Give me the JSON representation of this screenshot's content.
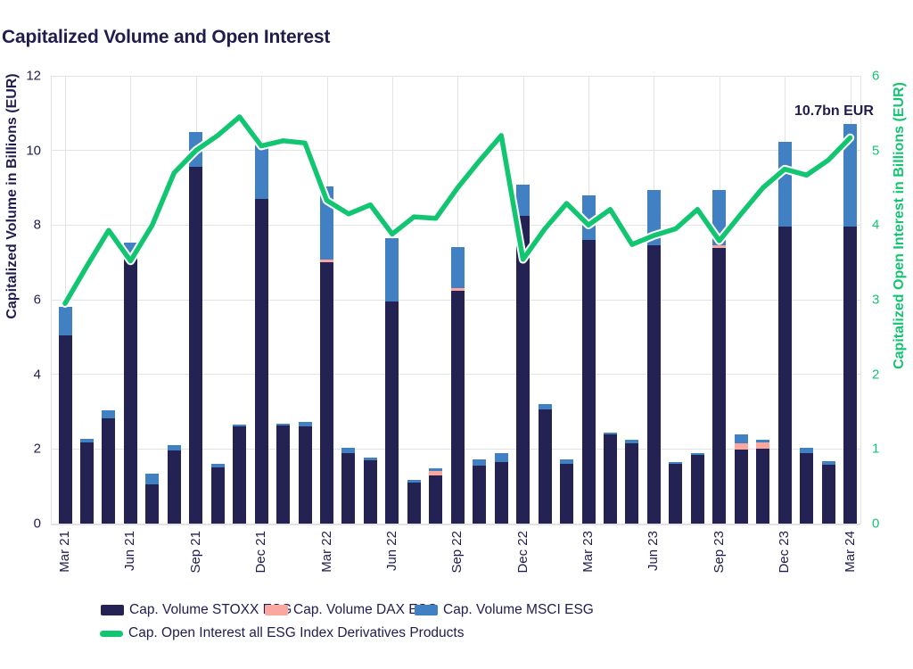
{
  "title": "Capitalized Volume and Open Interest",
  "annotation": {
    "text": "10.7bn EUR"
  },
  "axes": {
    "left": {
      "label": "Capitalized Volume in Billions (EUR)",
      "ticks": [
        0,
        2,
        4,
        6,
        8,
        10,
        12
      ],
      "range": [
        0,
        12
      ]
    },
    "right": {
      "label": "Capitalized Open Interest in Billions (EUR)",
      "ticks": [
        0,
        1,
        2,
        3,
        4,
        5,
        6
      ],
      "range": [
        0,
        6
      ]
    }
  },
  "colors": {
    "stoxx": "#242253",
    "dax": "#f9a79f",
    "msci": "#4181c3",
    "open_interest": "#12c571",
    "grid": "#e3e3e3",
    "text": "#201d4e"
  },
  "legend": {
    "items": [
      {
        "label": "Cap. Volume STOXX ESG",
        "color_key": "stoxx",
        "type": "box"
      },
      {
        "label": "Cap. Volume DAX ESG",
        "color_key": "dax",
        "type": "box"
      },
      {
        "label": "Cap. Volume MSCI ESG",
        "color_key": "msci",
        "type": "box"
      },
      {
        "label": "Cap. Open Interest all ESG Index Derivatives Products",
        "color_key": "open_interest",
        "type": "line"
      }
    ]
  },
  "chart_data": [
    {
      "type": "bar",
      "stacked": true,
      "title": "Capitalized Volume and Open Interest",
      "ylabel": "Capitalized Volume in Billions (EUR)",
      "ylim": [
        0,
        12
      ],
      "grid": true,
      "x_tick_labels_shown": [
        "Mar 21",
        "Jun 21",
        "Sep 21",
        "Dec 21",
        "Mar 22",
        "Jun 22",
        "Sep 22",
        "Dec 22",
        "Mar 23",
        "Jun 23",
        "Sep 23",
        "Dec 23",
        "Mar 24"
      ],
      "categories": [
        "Mar 21",
        "Apr 21",
        "May 21",
        "Jun 21",
        "Jul 21",
        "Aug 21",
        "Sep 21",
        "Oct 21",
        "Nov 21",
        "Dec 21",
        "Jan 22",
        "Feb 22",
        "Mar 22",
        "Apr 22",
        "May 22",
        "Jun 22",
        "Jul 22",
        "Aug 22",
        "Sep 22",
        "Oct 22",
        "Nov 22",
        "Dec 22",
        "Jan 23",
        "Feb 23",
        "Mar 23",
        "Apr 23",
        "May 23",
        "Jun 23",
        "Jul 23",
        "Aug 23",
        "Sep 23",
        "Oct 23",
        "Nov 23",
        "Dec 23",
        "Jan 24",
        "Feb 24",
        "Mar 24"
      ],
      "series": [
        {
          "name": "Cap. Volume STOXX ESG",
          "color_key": "stoxx",
          "values": [
            5.05,
            2.17,
            2.82,
            7.1,
            1.05,
            1.95,
            9.55,
            1.5,
            2.6,
            8.7,
            2.62,
            2.6,
            7.0,
            1.88,
            1.7,
            5.95,
            1.1,
            1.3,
            6.25,
            1.55,
            1.65,
            8.25,
            3.05,
            1.6,
            7.6,
            2.4,
            2.15,
            7.45,
            1.6,
            1.85,
            7.38,
            1.98,
            2.0,
            7.95,
            1.9,
            1.57,
            7.95
          ]
        },
        {
          "name": "Cap. Volume DAX ESG",
          "color_key": "dax",
          "values": [
            0,
            0,
            0,
            0,
            0,
            0,
            0,
            0,
            0,
            0,
            0,
            0,
            0.08,
            0,
            0,
            0,
            0,
            0.11,
            0.07,
            0,
            0,
            0,
            0,
            0,
            0,
            0,
            0,
            0,
            0,
            0,
            0.07,
            0.17,
            0.17,
            0,
            0,
            0,
            0
          ]
        },
        {
          "name": "Cap. Volume MSCI ESG",
          "color_key": "msci",
          "values": [
            0.75,
            0.1,
            0.22,
            0.42,
            0.28,
            0.15,
            0.95,
            0.1,
            0.05,
            1.55,
            0.05,
            0.12,
            1.95,
            0.16,
            0.08,
            1.7,
            0.06,
            0.08,
            1.1,
            0.17,
            0.25,
            0.83,
            0.15,
            0.13,
            1.2,
            0.05,
            0.1,
            1.5,
            0.04,
            0.05,
            1.5,
            0.24,
            0.08,
            2.28,
            0.12,
            0.1,
            2.75
          ]
        }
      ],
      "annotations": [
        {
          "text": "10.7bn EUR",
          "category": "Mar 24"
        }
      ]
    },
    {
      "type": "line",
      "name": "Cap. Open Interest all ESG Index Derivatives Products",
      "color_key": "open_interest",
      "ylabel": "Capitalized Open Interest in Billions (EUR)",
      "ylim": [
        0,
        6
      ],
      "axis": "right",
      "x": [
        "Mar 21",
        "Apr 21",
        "May 21",
        "Jun 21",
        "Jul 21",
        "Aug 21",
        "Sep 21",
        "Oct 21",
        "Nov 21",
        "Dec 21",
        "Jan 22",
        "Feb 22",
        "Mar 22",
        "Apr 22",
        "May 22",
        "Jun 22",
        "Jul 22",
        "Aug 22",
        "Sep 22",
        "Oct 22",
        "Nov 22",
        "Dec 22",
        "Jan 23",
        "Feb 23",
        "Mar 23",
        "Apr 23",
        "May 23",
        "Jun 23",
        "Jul 23",
        "Aug 23",
        "Sep 23",
        "Oct 23",
        "Nov 23",
        "Dec 23",
        "Jan 24",
        "Feb 24",
        "Mar 24"
      ],
      "values": [
        2.95,
        3.45,
        3.93,
        3.52,
        4.0,
        4.7,
        5.0,
        5.2,
        5.45,
        5.06,
        5.13,
        5.1,
        4.33,
        4.15,
        4.27,
        3.88,
        4.11,
        4.09,
        4.5,
        4.86,
        5.2,
        3.54,
        3.95,
        4.29,
        4.0,
        4.21,
        3.74,
        3.86,
        3.95,
        4.21,
        3.79,
        4.15,
        4.5,
        4.75,
        4.67,
        4.87,
        5.17
      ]
    }
  ]
}
